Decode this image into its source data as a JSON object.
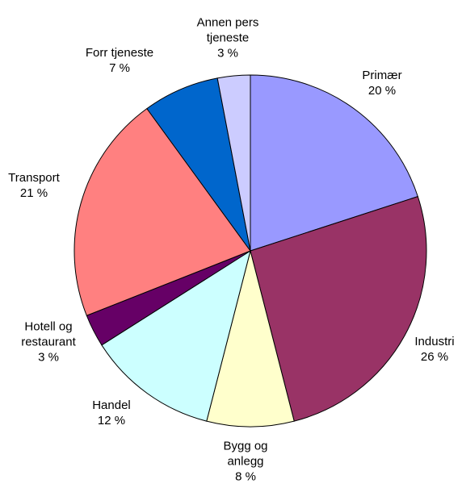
{
  "chart_data": {
    "type": "pie",
    "categories": [
      "Primær",
      "Industri",
      "Bygg og anlegg",
      "Handel",
      "Hotell og restaurant",
      "Transport",
      "Forr tjeneste",
      "Annen pers tjeneste"
    ],
    "values": [
      20,
      26,
      8,
      12,
      3,
      21,
      7,
      3
    ],
    "value_labels": [
      "20 %",
      "26 %",
      "8 %",
      "12 %",
      "3 %",
      "21 %",
      "7 %",
      "3 %"
    ],
    "colors": [
      "#9999ff",
      "#993366",
      "#ffffcc",
      "#ccffff",
      "#660066",
      "#ff8080",
      "#0066cc",
      "#ccccff"
    ]
  }
}
